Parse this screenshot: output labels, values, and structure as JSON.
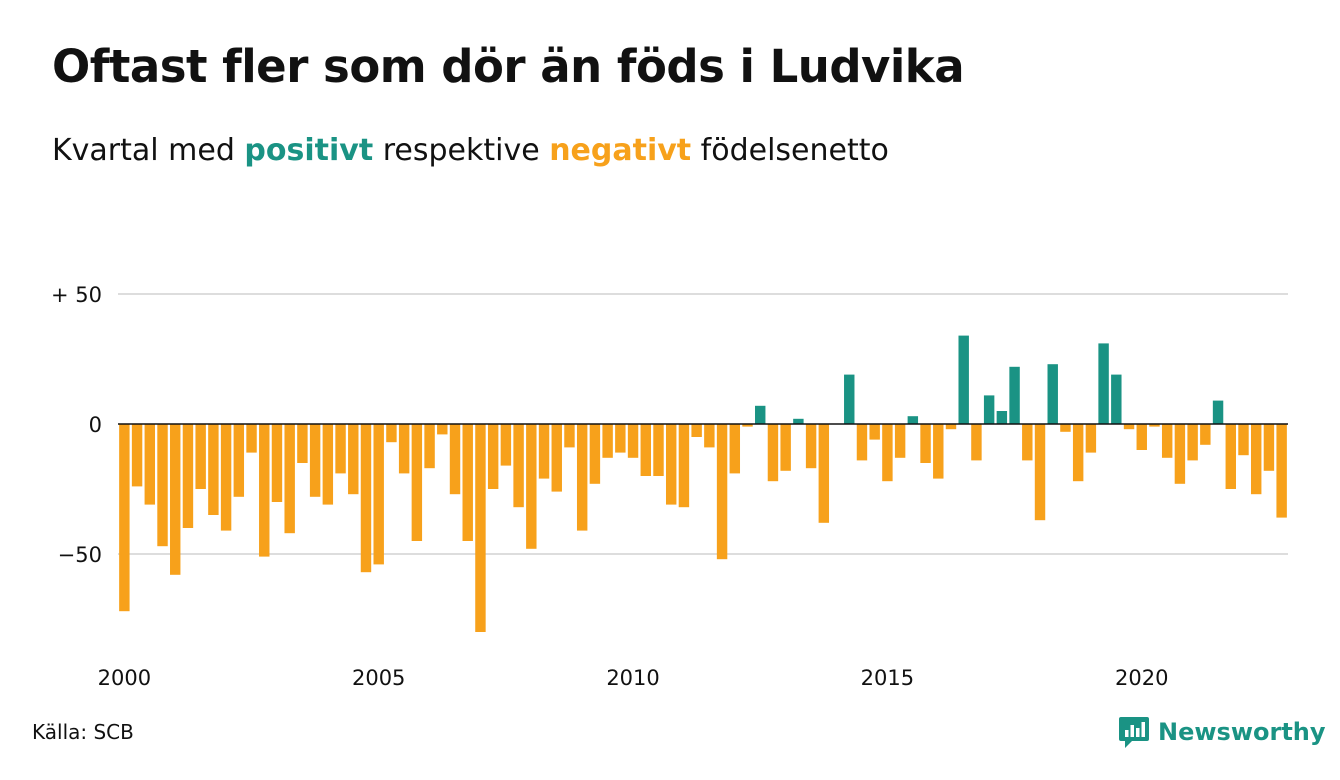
{
  "title": "Oftast fler som dör än föds i Ludvika",
  "subtitle": {
    "prefix": "Kvartal med ",
    "positive_word": "positivt",
    "middle": " respektive ",
    "negative_word": "negativt",
    "suffix": " födelsenetto"
  },
  "source": "Källa: SCB",
  "brand": "Newsworthy",
  "colors": {
    "positive": "#1a9384",
    "negative": "#f7a11b",
    "grid": "#dddddd",
    "zero_line": "#111111",
    "brand": "#1a9384"
  },
  "chart_data": {
    "type": "bar",
    "x_start_year": 2000,
    "periods_per_year": 4,
    "ylim": [
      -85,
      55
    ],
    "ytick_values": [
      50,
      0,
      -50
    ],
    "ytick_labels": [
      "+ 50",
      "0",
      "−50"
    ],
    "xtick_labels": [
      "2000",
      "2005",
      "2010",
      "2015",
      "2020"
    ],
    "grid": true,
    "values": [
      -72,
      -24,
      -31,
      -47,
      -58,
      -40,
      -25,
      -35,
      -41,
      -28,
      -11,
      -51,
      -30,
      -42,
      -15,
      -28,
      -31,
      -19,
      -27,
      -57,
      -54,
      -7,
      -19,
      -45,
      -17,
      -4,
      -27,
      -45,
      -80,
      -25,
      -16,
      -32,
      -48,
      -21,
      -26,
      -9,
      -41,
      -23,
      -13,
      -11,
      -13,
      -20,
      -20,
      -31,
      -32,
      -5,
      -9,
      -52,
      -19,
      -1,
      7,
      -22,
      -18,
      2,
      -17,
      -38,
      0,
      19,
      -14,
      -6,
      -22,
      -13,
      3,
      -15,
      -21,
      -2,
      34,
      -14,
      11,
      5,
      22,
      -14,
      -37,
      23,
      -3,
      -22,
      -11,
      31,
      19,
      -2,
      -10,
      -1,
      -13,
      -23,
      -14,
      -8,
      9,
      -25,
      -12,
      -27,
      -18,
      -36
    ]
  }
}
